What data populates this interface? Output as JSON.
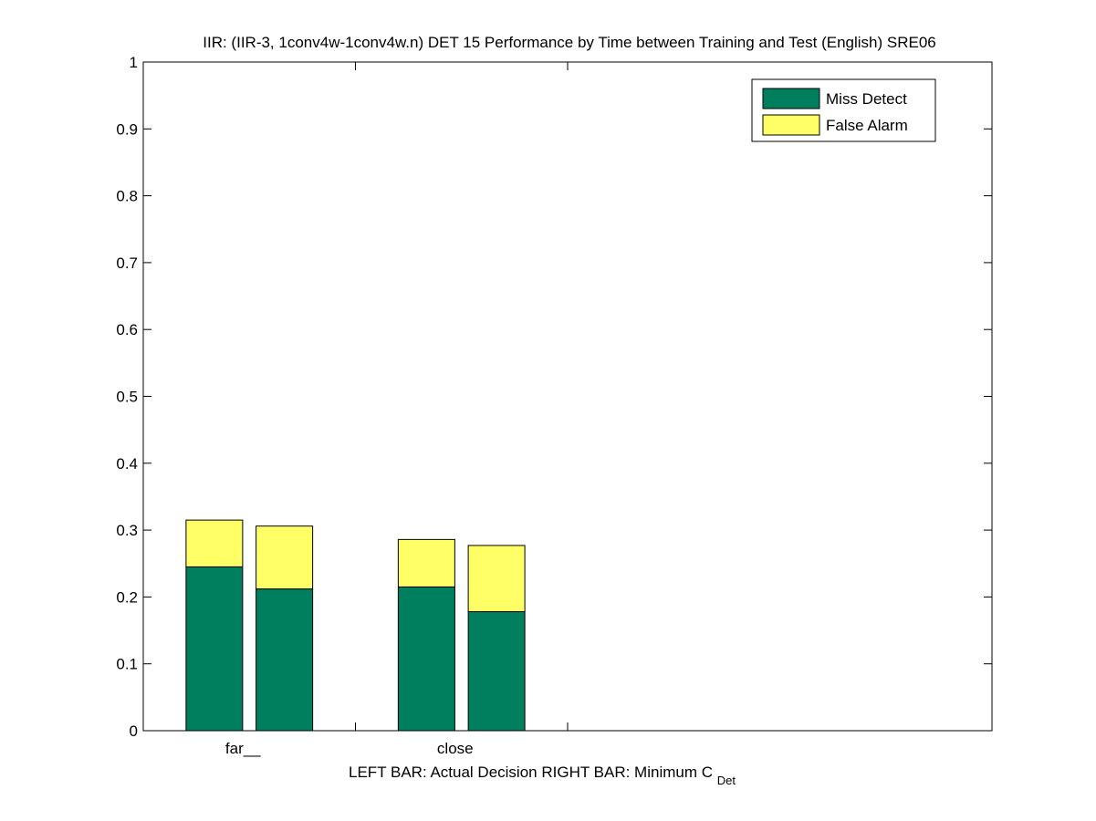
{
  "chart_data": {
    "type": "bar",
    "stacked": true,
    "title": "IIR: (IIR-3, 1conv4w-1conv4w.n) DET 15 Performance by Time between Training and Test (English) SRE06",
    "xlabel_left": "LEFT BAR: Actual Decision",
    "xlabel_right_prefix": "RIGHT BAR: Minimum C",
    "xlabel_right_subscript": "Det",
    "ylim": [
      0,
      1
    ],
    "yticks": [
      "0",
      "0.1",
      "0.2",
      "0.3",
      "0.4",
      "0.5",
      "0.6",
      "0.7",
      "0.8",
      "0.9",
      "1"
    ],
    "xlim": [
      0,
      4
    ],
    "xtick_positions": [
      1,
      2
    ],
    "categories": [
      "far__",
      "close"
    ],
    "legend_position": "top-right",
    "grid": false,
    "series": [
      {
        "name": "Miss Detect",
        "color": "#007f5f",
        "actual": [
          0.245,
          0.215
        ],
        "minimum": [
          0.212,
          0.178
        ]
      },
      {
        "name": "False Alarm",
        "color": "#ffff66",
        "actual": [
          0.07,
          0.071
        ],
        "minimum": [
          0.094,
          0.099
        ]
      }
    ]
  }
}
